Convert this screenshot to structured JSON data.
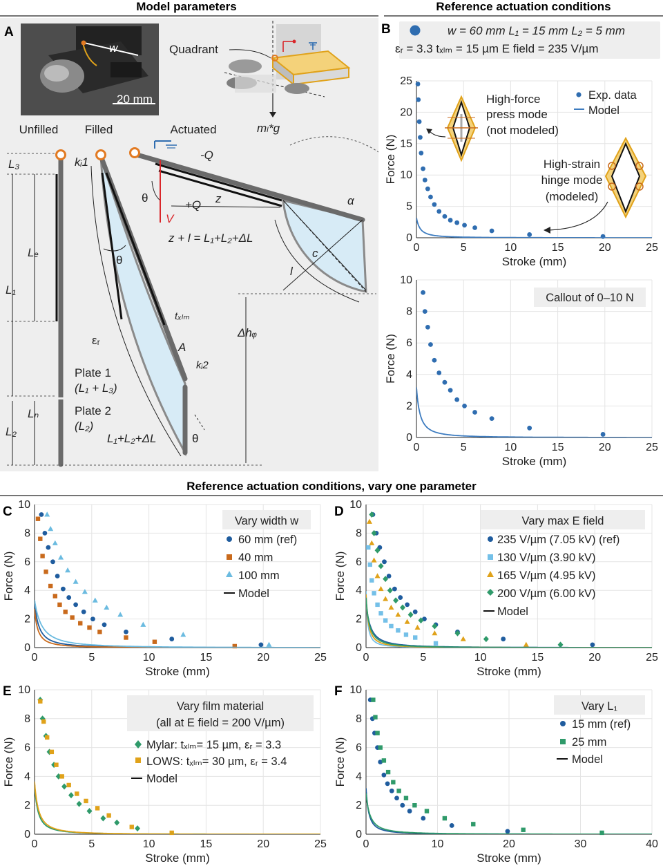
{
  "headers": {
    "model_parameters": "Model parameters",
    "reference_conditions": "Reference actuation conditions",
    "vary_one": "Reference actuation conditions, vary one parameter"
  },
  "panel_a": {
    "letter": "A",
    "photo_scale": "20 mm",
    "photo_w": "w",
    "quadrant": "Quadrant",
    "weight": "mₗ*g",
    "stage_unfilled": "Unfilled",
    "stage_filled": "Filled",
    "stage_actuated": "Actuated",
    "L3": "L₃",
    "Le": "Lₑ",
    "L1": "L₁",
    "Ln": "Lₙ",
    "L2": "L₂",
    "kb1": "kᵢ1",
    "kb2": "kᵢ2",
    "theta": "θ",
    "eps_r": "εᵣ",
    "A": "A",
    "t_film": "tₓₗₘ",
    "plate1": "Plate 1",
    "plate1_sub": "(L₁ + L₃)",
    "plate2": "Plate 2",
    "plate2_sub": "(L₂)",
    "total_len": "L₁+L₂+ΔL",
    "neg_q": "-Q",
    "pos_q": "+Q",
    "voltage": "V",
    "z": "z",
    "c": "c",
    "l": "l",
    "alpha": "α",
    "equation": "z + l = L₁+L₂+ΔL",
    "dhq": "Δhᵩ"
  },
  "panel_b": {
    "letter": "B",
    "params_line1": "w = 60 mm   L₁ = 15 mm   L₂ = 5 mm",
    "params_line2": "εᵣ = 3.3  tₓₗₘ = 15 µm   E field = 235 V/µm",
    "legend_exp": "Exp. data",
    "legend_model": "Model",
    "press_mode_1": "High-force",
    "press_mode_2": "press mode",
    "press_mode_3": "(not modeled)",
    "hinge_mode_1": "High-strain",
    "hinge_mode_2": "hinge mode",
    "hinge_mode_3": "(modeled)",
    "callout": "Callout of 0–10 N",
    "xlabel": "Stroke (mm)",
    "ylabel": "Force (N)"
  },
  "panel_c": {
    "letter": "C",
    "legend_title": "Vary width w",
    "series": [
      "60 mm (ref)",
      "40 mm",
      "100 mm"
    ],
    "model": "Model"
  },
  "panel_d": {
    "letter": "D",
    "legend_title": "Vary max E field",
    "series": [
      "235 V/µm (7.05 kV) (ref)",
      "130 V/µm (3.90 kV)",
      "165 V/µm (4.95 kV)",
      "200 V/µm (6.00 kV)"
    ],
    "model": "Model"
  },
  "panel_e": {
    "letter": "E",
    "legend_title_1": "Vary film material",
    "legend_title_2": "(all at E field = 200 V/µm)",
    "series": [
      "Mylar: tₓₗₘ= 15 µm, εᵣ = 3.3",
      "LOWS: tₓₗₘ= 30 µm, εᵣ = 3.4"
    ],
    "model": "Model"
  },
  "panel_f": {
    "letter": "F",
    "legend_title": "Vary L₁",
    "series": [
      "15 mm (ref)",
      "25 mm"
    ],
    "model": "Model"
  },
  "chart_data": [
    {
      "id": "B_main",
      "type": "scatter",
      "title": "Reference actuation conditions",
      "xlabel": "Stroke (mm)",
      "ylabel": "Force (N)",
      "xlim": [
        0,
        25
      ],
      "ylim": [
        0,
        25
      ],
      "xticks": [
        0,
        5,
        10,
        15,
        20,
        25
      ],
      "yticks": [
        0,
        5,
        10,
        15,
        20,
        25
      ],
      "series": [
        {
          "name": "Exp. data",
          "kind": "points",
          "color": "#2f6db0",
          "marker": "circle",
          "x": [
            0.15,
            0.2,
            0.3,
            0.4,
            0.5,
            0.7,
            0.9,
            1.2,
            1.5,
            1.9,
            2.4,
            3.0,
            3.6,
            4.3,
            5.1,
            6.2,
            8.0,
            12.0,
            19.8
          ],
          "y": [
            24.5,
            22.0,
            18.5,
            16.0,
            13.5,
            11.0,
            9.2,
            7.8,
            6.5,
            5.3,
            4.2,
            3.4,
            2.8,
            2.4,
            2.0,
            1.6,
            1.1,
            0.5,
            0.2
          ]
        },
        {
          "name": "Model",
          "kind": "curve",
          "color": "#3d7cc0",
          "model": {
            "A": 0.6,
            "s0": 0.55,
            "smax": 25.5,
            "k": 1.4
          }
        }
      ]
    },
    {
      "id": "B_callout",
      "type": "scatter",
      "title": "Callout of 0–10 N",
      "xlabel": "Stroke (mm)",
      "ylabel": "Force (N)",
      "xlim": [
        0,
        25
      ],
      "ylim": [
        0,
        10
      ],
      "xticks": [
        0,
        5,
        10,
        15,
        20,
        25
      ],
      "yticks": [
        0,
        2,
        4,
        6,
        8,
        10
      ],
      "series": [
        {
          "name": "Exp. data",
          "kind": "points",
          "color": "#2f6db0",
          "marker": "circle",
          "x": [
            0.7,
            0.9,
            1.2,
            1.5,
            1.9,
            2.4,
            3.0,
            3.6,
            4.3,
            5.1,
            6.2,
            8.0,
            12.0,
            19.8
          ],
          "y": [
            9.2,
            8.0,
            7.0,
            5.9,
            4.9,
            4.1,
            3.5,
            3.0,
            2.4,
            2.0,
            1.6,
            1.2,
            0.6,
            0.2
          ]
        },
        {
          "name": "Model",
          "kind": "curve",
          "color": "#3d7cc0",
          "model": {
            "A": 0.6,
            "s0": 0.55,
            "smax": 25.5,
            "k": 1.4
          }
        }
      ]
    },
    {
      "id": "C",
      "type": "scatter",
      "title": "Vary width w",
      "xlabel": "Stroke (mm)",
      "ylabel": "Force (N)",
      "xlim": [
        0,
        25
      ],
      "ylim": [
        0,
        10
      ],
      "xticks": [
        0,
        5,
        10,
        15,
        20,
        25
      ],
      "yticks": [
        0,
        2,
        4,
        6,
        8,
        10
      ],
      "series": [
        {
          "name": "60 mm (ref)",
          "kind": "points",
          "color": "#1f5c9e",
          "marker": "circle",
          "x": [
            0.6,
            0.9,
            1.2,
            1.6,
            2.0,
            2.5,
            3.0,
            3.6,
            4.3,
            5.1,
            6.1,
            8.0,
            12.0,
            19.8
          ],
          "y": [
            9.3,
            8.0,
            7.0,
            6.0,
            5.0,
            4.1,
            3.5,
            3.0,
            2.5,
            2.0,
            1.6,
            1.1,
            0.6,
            0.2
          ]
        },
        {
          "name": "40 mm",
          "kind": "points",
          "color": "#c96a1c",
          "marker": "square",
          "x": [
            0.3,
            0.5,
            0.7,
            1.0,
            1.4,
            1.8,
            2.2,
            2.7,
            3.3,
            4.0,
            4.8,
            5.7,
            8.0,
            10.5,
            17.5
          ],
          "y": [
            9.0,
            7.6,
            6.4,
            5.3,
            4.3,
            3.6,
            3.0,
            2.5,
            2.1,
            1.7,
            1.4,
            1.1,
            0.7,
            0.4,
            0.1
          ]
        },
        {
          "name": "100 mm",
          "kind": "points",
          "color": "#6bbbe0",
          "marker": "triangle",
          "x": [
            1.1,
            1.4,
            1.8,
            2.3,
            2.9,
            3.6,
            4.4,
            5.3,
            6.3,
            7.5,
            9.5,
            13.0,
            20.5
          ],
          "y": [
            9.3,
            8.3,
            7.3,
            6.3,
            5.4,
            4.6,
            3.9,
            3.3,
            2.8,
            2.3,
            1.6,
            0.9,
            0.2
          ]
        },
        {
          "name": "Model 60 mm",
          "kind": "curve",
          "color": "#1f5c9e",
          "model": {
            "A": 0.6,
            "s0": 0.55,
            "smax": 25.5,
            "k": 1.4
          }
        },
        {
          "name": "Model 40 mm",
          "kind": "curve",
          "color": "#c96a1c",
          "model": {
            "A": 0.35,
            "s0": 0.42,
            "smax": 22,
            "k": 1.4
          }
        },
        {
          "name": "Model 100 mm",
          "kind": "curve",
          "color": "#6bbbe0",
          "model": {
            "A": 1.25,
            "s0": 0.9,
            "smax": 26,
            "k": 1.4
          }
        }
      ]
    },
    {
      "id": "D",
      "type": "scatter",
      "title": "Vary max E field",
      "xlabel": "Stroke (mm)",
      "ylabel": "Force (N)",
      "xlim": [
        0,
        25
      ],
      "ylim": [
        0,
        10
      ],
      "xticks": [
        0,
        5,
        10,
        15,
        20,
        25
      ],
      "yticks": [
        0,
        2,
        4,
        6,
        8,
        10
      ],
      "series": [
        {
          "name": "235 V/µm (7.05 kV) (ref)",
          "kind": "points",
          "color": "#1f5c9e",
          "marker": "circle",
          "x": [
            0.6,
            0.9,
            1.2,
            1.6,
            2.0,
            2.5,
            3.0,
            3.6,
            4.3,
            5.1,
            6.1,
            8.0,
            12.0,
            19.8
          ],
          "y": [
            9.3,
            8.0,
            7.0,
            6.0,
            5.0,
            4.1,
            3.5,
            3.0,
            2.5,
            2.0,
            1.6,
            1.1,
            0.6,
            0.2
          ]
        },
        {
          "name": "130 V/µm (3.90 kV)",
          "kind": "points",
          "color": "#74c0e8",
          "marker": "square",
          "x": [
            0.2,
            0.35,
            0.5,
            0.7,
            1.0,
            1.3,
            1.7,
            2.2,
            2.8,
            3.5,
            4.3,
            6.1
          ],
          "y": [
            7.0,
            5.8,
            4.7,
            3.8,
            3.0,
            2.4,
            1.9,
            1.5,
            1.2,
            0.9,
            0.7,
            0.3
          ]
        },
        {
          "name": "165 V/µm (4.95 kV)",
          "kind": "points",
          "color": "#e0a21a",
          "marker": "triangle",
          "x": [
            0.3,
            0.5,
            0.7,
            1.0,
            1.3,
            1.7,
            2.2,
            2.8,
            3.6,
            4.5,
            6.0,
            8.5,
            14.0
          ],
          "y": [
            8.8,
            7.3,
            6.1,
            5.0,
            4.1,
            3.4,
            2.8,
            2.3,
            1.8,
            1.4,
            1.0,
            0.6,
            0.2
          ]
        },
        {
          "name": "200 V/µm (6.00 kV)",
          "kind": "points",
          "color": "#2f9a6a",
          "marker": "diamond",
          "x": [
            0.5,
            0.7,
            1.0,
            1.3,
            1.7,
            2.1,
            2.6,
            3.2,
            3.9,
            4.8,
            6.0,
            8.0,
            10.5,
            17.0
          ],
          "y": [
            9.3,
            8.0,
            6.8,
            5.7,
            4.8,
            4.0,
            3.3,
            2.8,
            2.3,
            1.9,
            1.5,
            1.0,
            0.6,
            0.2
          ]
        },
        {
          "name": "Model 235",
          "kind": "curve",
          "color": "#1f5c9e",
          "model": {
            "A": 0.6,
            "s0": 0.55,
            "smax": 25.5,
            "k": 1.4
          }
        },
        {
          "name": "Model 130",
          "kind": "curve",
          "color": "#74c0e8",
          "model": {
            "A": 0.18,
            "s0": 0.2,
            "smax": 15,
            "k": 1.4
          }
        },
        {
          "name": "Model 165",
          "kind": "curve",
          "color": "#e0a21a",
          "model": {
            "A": 0.3,
            "s0": 0.3,
            "smax": 19,
            "k": 1.4
          }
        },
        {
          "name": "Model 200",
          "kind": "curve",
          "color": "#2f9a6a",
          "model": {
            "A": 0.45,
            "s0": 0.42,
            "smax": 22,
            "k": 1.4
          }
        }
      ]
    },
    {
      "id": "E",
      "type": "scatter",
      "title": "Vary film material",
      "xlabel": "Stroke (mm)",
      "ylabel": "Force (N)",
      "xlim": [
        0,
        25
      ],
      "ylim": [
        0,
        10
      ],
      "xticks": [
        0,
        5,
        10,
        15,
        20,
        25
      ],
      "yticks": [
        0,
        2,
        4,
        6,
        8,
        10
      ],
      "series": [
        {
          "name": "Mylar: t_film= 15 µm, εr = 3.3",
          "kind": "points",
          "color": "#2f9a6a",
          "marker": "diamond",
          "x": [
            0.5,
            0.7,
            1.0,
            1.3,
            1.7,
            2.1,
            2.6,
            3.2,
            3.9,
            4.8,
            6.0,
            7.2,
            9.0
          ],
          "y": [
            9.3,
            8.0,
            6.8,
            5.7,
            4.8,
            4.0,
            3.3,
            2.7,
            2.1,
            1.6,
            1.1,
            0.8,
            0.4
          ]
        },
        {
          "name": "LOWS: t_film= 30 µm, εr = 3.4",
          "kind": "points",
          "color": "#e0a21a",
          "marker": "square",
          "x": [
            0.5,
            0.8,
            1.1,
            1.5,
            1.9,
            2.4,
            3.0,
            3.7,
            4.5,
            5.5,
            6.5,
            8.5,
            12.0
          ],
          "y": [
            9.2,
            7.8,
            6.7,
            5.7,
            4.8,
            4.0,
            3.4,
            2.8,
            2.3,
            1.8,
            1.3,
            0.5,
            0.1
          ]
        },
        {
          "name": "Model Mylar",
          "kind": "curve",
          "color": "#2f9a6a",
          "model": {
            "A": 0.45,
            "s0": 0.42,
            "smax": 22,
            "k": 1.4
          }
        },
        {
          "name": "Model LOWS",
          "kind": "curve",
          "color": "#e0a21a",
          "model": {
            "A": 0.6,
            "s0": 0.5,
            "smax": 15,
            "k": 1.4
          }
        }
      ]
    },
    {
      "id": "F",
      "type": "scatter",
      "title": "Vary L1",
      "xlabel": "Stroke (mm)",
      "ylabel": "Force (N)",
      "xlim": [
        0,
        40
      ],
      "ylim": [
        0,
        10
      ],
      "xticks": [
        0,
        10,
        20,
        30,
        40
      ],
      "yticks": [
        0,
        2,
        4,
        6,
        8,
        10
      ],
      "series": [
        {
          "name": "15 mm (ref)",
          "kind": "points",
          "color": "#1f5c9e",
          "marker": "circle",
          "x": [
            0.6,
            0.9,
            1.2,
            1.6,
            2.0,
            2.5,
            3.0,
            3.6,
            4.3,
            5.1,
            6.1,
            8.0,
            12.0,
            19.8
          ],
          "y": [
            9.3,
            8.0,
            7.0,
            6.0,
            5.0,
            4.1,
            3.5,
            3.0,
            2.5,
            2.0,
            1.6,
            1.1,
            0.6,
            0.2
          ]
        },
        {
          "name": "25 mm",
          "kind": "points",
          "color": "#2f9a6a",
          "marker": "square",
          "x": [
            1.0,
            1.3,
            1.6,
            2.0,
            2.5,
            3.1,
            3.8,
            4.6,
            5.6,
            6.8,
            8.5,
            11.0,
            15.0,
            22.0,
            33.0
          ],
          "y": [
            9.3,
            8.1,
            7.0,
            6.0,
            5.1,
            4.3,
            3.6,
            3.0,
            2.5,
            2.0,
            1.6,
            1.1,
            0.7,
            0.3,
            0.1
          ]
        },
        {
          "name": "Model 15 mm",
          "kind": "curve",
          "color": "#1f5c9e",
          "model": {
            "A": 0.6,
            "s0": 0.55,
            "smax": 40,
            "k": 1.4
          }
        },
        {
          "name": "Model 25 mm",
          "kind": "curve",
          "color": "#2f9a6a",
          "model": {
            "A": 0.9,
            "s0": 0.8,
            "smax": 40,
            "k": 1.4
          }
        }
      ]
    }
  ]
}
